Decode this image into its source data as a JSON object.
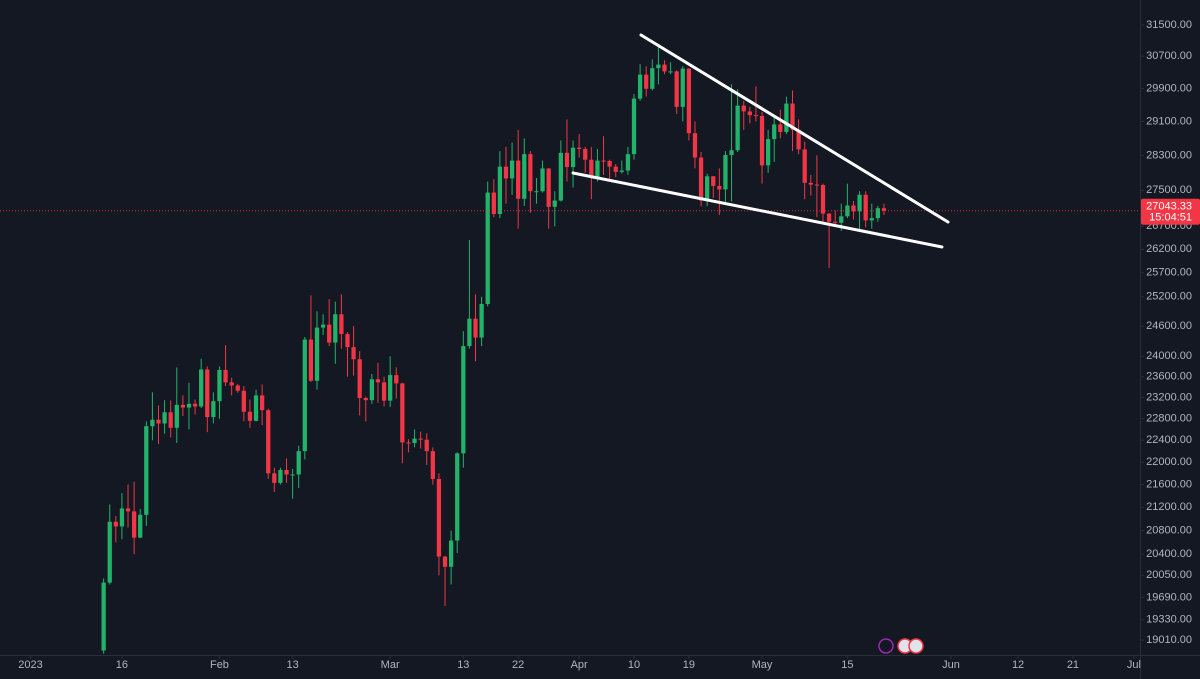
{
  "chart_data": {
    "type": "candlestick",
    "log_scale": true,
    "up_color": "#22b36a",
    "down_color": "#f23645",
    "xlim": [
      "2022-12-27",
      "2023-07-02"
    ],
    "ylim": [
      18780,
      32150
    ],
    "xticks": [
      {
        "value": "2023-01-01",
        "label": "2023"
      },
      {
        "value": "2023-01-16",
        "label": "16"
      },
      {
        "value": "2023-02-01",
        "label": "Feb"
      },
      {
        "value": "2023-02-13",
        "label": "13"
      },
      {
        "value": "2023-03-01",
        "label": "Mar"
      },
      {
        "value": "2023-03-13",
        "label": "13"
      },
      {
        "value": "2023-03-22",
        "label": "22"
      },
      {
        "value": "2023-04-01",
        "label": "Apr"
      },
      {
        "value": "2023-04-10",
        "label": "10"
      },
      {
        "value": "2023-04-19",
        "label": "19"
      },
      {
        "value": "2023-05-01",
        "label": "May"
      },
      {
        "value": "2023-05-15",
        "label": "15"
      },
      {
        "value": "2023-06-01",
        "label": "Jun"
      },
      {
        "value": "2023-06-12",
        "label": "12"
      },
      {
        "value": "2023-06-21",
        "label": "21"
      },
      {
        "value": "2023-07-01",
        "label": "Jul"
      }
    ],
    "yticks": [
      {
        "value": 31500,
        "label": "31500.00"
      },
      {
        "value": 30700,
        "label": "30700.00"
      },
      {
        "value": 29900,
        "label": "29900.00"
      },
      {
        "value": 29100,
        "label": "29100.00"
      },
      {
        "value": 28300,
        "label": "28300.00"
      },
      {
        "value": 27500,
        "label": "27500.00"
      },
      {
        "value": 26700,
        "label": "26700.00"
      },
      {
        "value": 26200,
        "label": "26200.00"
      },
      {
        "value": 25700,
        "label": "25700.00"
      },
      {
        "value": 25200,
        "label": "25200.00"
      },
      {
        "value": 24600,
        "label": "24600.00"
      },
      {
        "value": 24000,
        "label": "24000.00"
      },
      {
        "value": 23600,
        "label": "23600.00"
      },
      {
        "value": 23200,
        "label": "23200.00"
      },
      {
        "value": 22800,
        "label": "22800.00"
      },
      {
        "value": 22400,
        "label": "22400.00"
      },
      {
        "value": 22000,
        "label": "22000.00"
      },
      {
        "value": 21600,
        "label": "21600.00"
      },
      {
        "value": 21200,
        "label": "21200.00"
      },
      {
        "value": 20800,
        "label": "20800.00"
      },
      {
        "value": 20400,
        "label": "20400.00"
      },
      {
        "value": 20050,
        "label": "20050.00"
      },
      {
        "value": 19690,
        "label": "19690.00"
      },
      {
        "value": 19330,
        "label": "19330.00"
      },
      {
        "value": 19010,
        "label": "19010.00"
      }
    ],
    "last_price": 27043.33,
    "countdown": "15:04:51",
    "x": [
      "2023-01-13",
      "2023-01-14",
      "2023-01-15",
      "2023-01-16",
      "2023-01-17",
      "2023-01-18",
      "2023-01-19",
      "2023-01-20",
      "2023-01-21",
      "2023-01-22",
      "2023-01-23",
      "2023-01-24",
      "2023-01-25",
      "2023-01-26",
      "2023-01-27",
      "2023-01-28",
      "2023-01-29",
      "2023-01-30",
      "2023-01-31",
      "2023-02-01",
      "2023-02-02",
      "2023-02-03",
      "2023-02-04",
      "2023-02-05",
      "2023-02-06",
      "2023-02-07",
      "2023-02-08",
      "2023-02-09",
      "2023-02-10",
      "2023-02-11",
      "2023-02-12",
      "2023-02-13",
      "2023-02-14",
      "2023-02-15",
      "2023-02-16",
      "2023-02-17",
      "2023-02-18",
      "2023-02-19",
      "2023-02-20",
      "2023-02-21",
      "2023-02-22",
      "2023-02-23",
      "2023-02-24",
      "2023-02-25",
      "2023-02-26",
      "2023-02-27",
      "2023-02-28",
      "2023-03-01",
      "2023-03-02",
      "2023-03-03",
      "2023-03-04",
      "2023-03-05",
      "2023-03-06",
      "2023-03-07",
      "2023-03-08",
      "2023-03-09",
      "2023-03-10",
      "2023-03-11",
      "2023-03-12",
      "2023-03-13",
      "2023-03-14",
      "2023-03-15",
      "2023-03-16",
      "2023-03-17",
      "2023-03-18",
      "2023-03-19",
      "2023-03-20",
      "2023-03-21",
      "2023-03-22",
      "2023-03-23",
      "2023-03-24",
      "2023-03-25",
      "2023-03-26",
      "2023-03-27",
      "2023-03-28",
      "2023-03-29",
      "2023-03-30",
      "2023-03-31",
      "2023-04-01",
      "2023-04-02",
      "2023-04-03",
      "2023-04-04",
      "2023-04-05",
      "2023-04-06",
      "2023-04-07",
      "2023-04-08",
      "2023-04-09",
      "2023-04-10",
      "2023-04-11",
      "2023-04-12",
      "2023-04-13",
      "2023-04-14",
      "2023-04-15",
      "2023-04-16",
      "2023-04-17",
      "2023-04-18",
      "2023-04-19",
      "2023-04-20",
      "2023-04-21",
      "2023-04-22",
      "2023-04-23",
      "2023-04-24",
      "2023-04-25",
      "2023-04-26",
      "2023-04-27",
      "2023-04-28",
      "2023-04-29",
      "2023-04-30",
      "2023-05-01",
      "2023-05-02",
      "2023-05-03",
      "2023-05-04",
      "2023-05-05",
      "2023-05-06",
      "2023-05-07",
      "2023-05-08",
      "2023-05-09",
      "2023-05-10",
      "2023-05-11",
      "2023-05-12",
      "2023-05-13",
      "2023-05-14",
      "2023-05-15",
      "2023-05-16",
      "2023-05-17",
      "2023-05-18",
      "2023-05-19",
      "2023-05-20",
      "2023-05-21"
    ],
    "open": [
      18850,
      19930,
      20950,
      20870,
      21180,
      21130,
      20680,
      21070,
      22660,
      22780,
      22710,
      22920,
      22630,
      23060,
      23010,
      23080,
      23030,
      23740,
      22830,
      23130,
      23730,
      23490,
      23430,
      23330,
      22930,
      22760,
      23240,
      22960,
      21800,
      21630,
      21860,
      21780,
      21780,
      22200,
      24330,
      23520,
      24570,
      24630,
      24270,
      24840,
      24440,
      24180,
      23940,
      23190,
      23150,
      23550,
      23490,
      23140,
      23630,
      23470,
      22360,
      22350,
      22430,
      22410,
      22200,
      21700,
      20360,
      20190,
      20630,
      22160,
      24200,
      24750,
      24370,
      25050,
      27450,
      26970,
      28040,
      27770,
      28180,
      27310,
      28330,
      27480,
      27480,
      28000,
      27130,
      27270,
      28360,
      28030,
      28480,
      28450,
      28200,
      27800,
      28180,
      28170,
      28040,
      27920,
      27950,
      28330,
      29650,
      30240,
      29890,
      30400,
      30490,
      30320,
      30320,
      29450,
      30390,
      28820,
      28250,
      27270,
      27820,
      27600,
      27520,
      28310,
      28420,
      29480,
      29340,
      29250,
      29230,
      28070,
      28680,
      29030,
      28850,
      29530,
      28900,
      28440,
      27670,
      27630,
      27620,
      26980,
      26800,
      26780,
      26920,
      27160,
      27030,
      27400,
      26830,
      26880,
      27100
    ],
    "high": [
      20000,
      21250,
      21050,
      21450,
      21600,
      21650,
      21170,
      22750,
      23300,
      23050,
      23150,
      23140,
      23780,
      23240,
      23480,
      23160,
      23950,
      23800,
      23300,
      23800,
      24220,
      23580,
      23460,
      23420,
      23160,
      23350,
      23450,
      22990,
      21900,
      21900,
      22070,
      21880,
      22300,
      24380,
      25230,
      24900,
      24840,
      25150,
      25100,
      25250,
      24480,
      24600,
      24100,
      23220,
      23650,
      23870,
      23600,
      24000,
      23780,
      23480,
      22420,
      22600,
      22560,
      22530,
      22270,
      21800,
      20370,
      20800,
      22180,
      24500,
      26400,
      25250,
      25200,
      27700,
      27750,
      28400,
      28500,
      28600,
      28900,
      28700,
      28400,
      27780,
      28180,
      28000,
      27480,
      28650,
      29150,
      28650,
      28800,
      28500,
      28500,
      28450,
      28750,
      28200,
      28100,
      28180,
      28500,
      29760,
      30500,
      30450,
      30620,
      31000,
      30600,
      30550,
      30350,
      30450,
      30400,
      29100,
      28380,
      27880,
      27820,
      28000,
      28400,
      30000,
      29880,
      29600,
      29450,
      29950,
      29330,
      28900,
      29250,
      29380,
      29700,
      29850,
      29150,
      28620,
      27850,
      28300,
      27650,
      26990,
      27050,
      27200,
      27650,
      27260,
      27480,
      27480,
      27200,
      27150,
      27200
    ],
    "low": [
      18800,
      19900,
      20600,
      20650,
      20850,
      20400,
      20670,
      20880,
      22400,
      22330,
      22520,
      22450,
      22350,
      22850,
      22600,
      22880,
      23000,
      22550,
      22710,
      22800,
      23420,
      23240,
      23290,
      22750,
      22630,
      22750,
      22680,
      21700,
      21470,
      21600,
      21630,
      21350,
      21540,
      22050,
      23500,
      23350,
      24420,
      24200,
      23850,
      24150,
      23600,
      23620,
      22860,
      22750,
      23080,
      23100,
      23030,
      23020,
      23180,
      21980,
      22180,
      22270,
      22250,
      21950,
      21600,
      20050,
      19550,
      19900,
      20420,
      21900,
      24150,
      23900,
      24200,
      25000,
      26900,
      26880,
      27200,
      27400,
      26650,
      27150,
      27000,
      27200,
      27450,
      26650,
      26700,
      27250,
      27700,
      27560,
      28250,
      27900,
      27300,
      27700,
      27850,
      27750,
      27800,
      27880,
      27850,
      28200,
      29600,
      29700,
      29850,
      30000,
      30250,
      30250,
      29280,
      29100,
      28650,
      28000,
      27140,
      27150,
      27330,
      26950,
      27200,
      27250,
      28380,
      28900,
      29050,
      29100,
      27650,
      27900,
      28150,
      28700,
      28800,
      28400,
      28330,
      27300,
      27380,
      26900,
      26780,
      25800,
      26700,
      26600,
      26880,
      26850,
      26580,
      26680,
      26650,
      26800,
      26950
    ],
    "close": [
      19930,
      20950,
      20870,
      21180,
      21130,
      20680,
      21070,
      22660,
      22780,
      22710,
      22920,
      22630,
      23060,
      23010,
      23080,
      23030,
      23740,
      22830,
      23130,
      23730,
      23490,
      23430,
      23330,
      22930,
      22760,
      23240,
      22960,
      21800,
      21630,
      21860,
      21780,
      21780,
      22200,
      24330,
      23520,
      24570,
      24630,
      24270,
      24840,
      24440,
      24180,
      23940,
      23190,
      23150,
      23550,
      23490,
      23140,
      23630,
      23470,
      22360,
      22350,
      22430,
      22410,
      22200,
      21700,
      20360,
      20190,
      20630,
      22160,
      24200,
      24750,
      24370,
      25050,
      27450,
      26970,
      28040,
      27770,
      28180,
      27310,
      28330,
      27480,
      27480,
      28000,
      27130,
      27270,
      28360,
      28030,
      28480,
      28450,
      28200,
      27800,
      28180,
      28170,
      28040,
      27920,
      27950,
      28330,
      29650,
      30240,
      29890,
      30400,
      30490,
      30320,
      30320,
      29450,
      30390,
      28820,
      28250,
      27270,
      27820,
      27600,
      27520,
      28310,
      28420,
      29480,
      29340,
      29250,
      29230,
      28070,
      28680,
      29030,
      28850,
      29530,
      28900,
      28440,
      27670,
      27630,
      27620,
      26980,
      26800,
      26780,
      26920,
      27160,
      27030,
      27400,
      26830,
      26880,
      27100,
      27043.33
    ]
  }
}
